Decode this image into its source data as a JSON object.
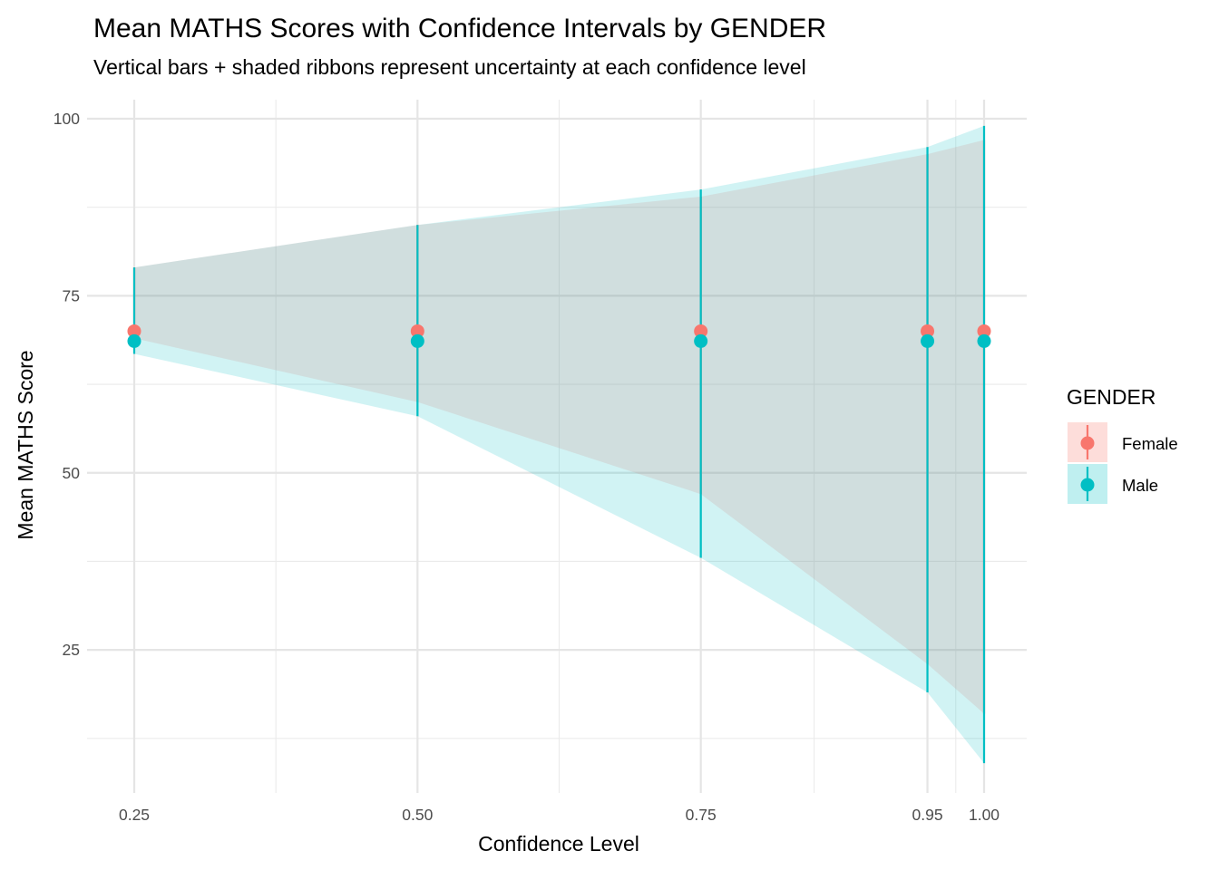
{
  "chart_data": {
    "type": "line",
    "title": "Mean MATHS Scores with Confidence Intervals by GENDER",
    "subtitle": "Vertical bars + shaded ribbons represent uncertainty at each confidence level",
    "xlabel": "Confidence Level",
    "ylabel": "Mean MATHS Score",
    "x": [
      0.25,
      0.5,
      0.75,
      0.95,
      1.0
    ],
    "x_tick_labels": [
      "0.25",
      "0.50",
      "0.75",
      "0.95",
      "1.00"
    ],
    "xlim": [
      0.25,
      1.0
    ],
    "y_ticks": [
      25,
      50,
      75,
      100
    ],
    "y_tick_labels": [
      "25",
      "50",
      "75",
      "100"
    ],
    "ylim": [
      5,
      100
    ],
    "grid": true,
    "legend": {
      "title": "GENDER",
      "position": "right"
    },
    "series": [
      {
        "name": "Female",
        "color": "#F8766D",
        "mean": [
          70,
          70,
          70,
          70,
          70
        ],
        "lower": [
          69,
          60,
          47,
          23,
          16
        ],
        "upper": [
          79,
          85,
          89,
          95,
          97
        ]
      },
      {
        "name": "Male",
        "color": "#00BFC4",
        "mean": [
          68.6,
          68.6,
          68.6,
          68.6,
          68.6
        ],
        "lower": [
          66.8,
          58,
          38,
          19,
          9
        ],
        "upper": [
          79,
          85,
          90,
          96,
          99
        ]
      }
    ]
  }
}
